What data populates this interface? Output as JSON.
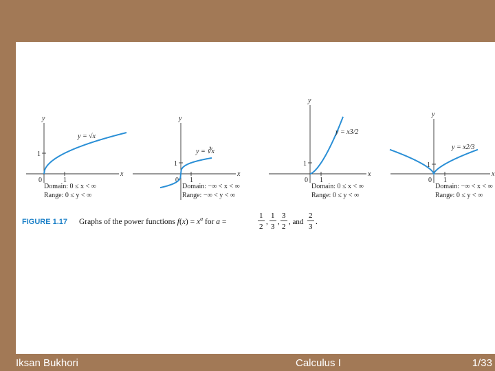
{
  "footer": {
    "author": "Iksan Bukhori",
    "course": "Calculus I",
    "page": "1/33"
  },
  "figure": {
    "label": "FIGURE 1.17",
    "caption_text": "Graphs of the power functions",
    "caption_tail": ", and",
    "accent_color": "#1a7fc7",
    "curve_color": "#2a8fd6"
  },
  "chart_data": [
    {
      "type": "line",
      "function": "y = √x",
      "label": "y = √x",
      "x": [
        0,
        0.25,
        0.5,
        1,
        2,
        3,
        4
      ],
      "y": [
        0,
        0.5,
        0.707,
        1,
        1.414,
        1.732,
        2
      ],
      "ticks": {
        "x": [
          "0",
          "1"
        ],
        "y": [
          "1"
        ]
      },
      "domain": "Domain:  0 ≤ x < ∞",
      "range": "Range:  0 ≤ y < ∞"
    },
    {
      "type": "line",
      "function": "y = ∛x",
      "label": "y = ∛x",
      "x": [
        -2,
        -1,
        -0.5,
        0,
        0.5,
        1,
        2,
        3
      ],
      "y": [
        -1.26,
        -1,
        -0.794,
        0,
        0.794,
        1,
        1.26,
        1.442
      ],
      "ticks": {
        "x": [
          "0",
          "1"
        ],
        "y": [
          "1"
        ]
      },
      "domain": "Domain:  −∞ < x < ∞",
      "range": "Range:  −∞ < y < ∞"
    },
    {
      "type": "line",
      "function": "y = x^(3/2)",
      "label": "y = x3/2",
      "x": [
        0,
        0.5,
        1,
        1.5,
        2,
        2.5,
        3
      ],
      "y": [
        0,
        0.354,
        1,
        1.837,
        2.828,
        3.953,
        5.196
      ],
      "ticks": {
        "x": [
          "0",
          "1"
        ],
        "y": [
          "1"
        ]
      },
      "domain": "Domain:  0 ≤ x < ∞",
      "range": "Range:  0 ≤ y < ∞"
    },
    {
      "type": "line",
      "function": "y = x^(2/3)",
      "label": "y = x2/3",
      "x": [
        -4,
        -3,
        -2,
        -1,
        0,
        1,
        2,
        3,
        4
      ],
      "y": [
        2.52,
        2.08,
        1.587,
        1,
        0,
        1,
        1.587,
        2.08,
        2.52
      ],
      "ticks": {
        "x": [
          "0",
          "1"
        ],
        "y": [
          "1"
        ]
      },
      "domain": "Domain:  −∞ < x < ∞",
      "range": "Range:  0 ≤ y < ∞"
    }
  ]
}
